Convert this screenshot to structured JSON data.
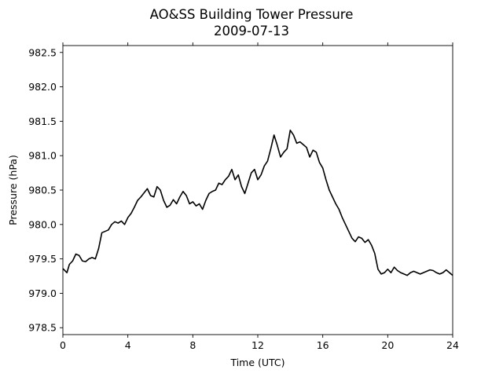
{
  "chart_data": {
    "type": "line",
    "title": "AO&SS Building Tower Pressure",
    "subtitle": "2009-07-13",
    "xlabel": "Time (UTC)",
    "ylabel": "Pressure (hPa)",
    "xlim": [
      0,
      24
    ],
    "ylim": [
      978.4,
      982.6
    ],
    "xticks": [
      0,
      4,
      8,
      12,
      16,
      20,
      24
    ],
    "yticks": [
      978.5,
      979.0,
      979.5,
      980.0,
      980.5,
      981.0,
      981.5,
      982.0,
      982.5
    ],
    "grid": false,
    "legend": "none",
    "line_color": "#000000",
    "series": [
      {
        "x": [
          0,
          0.25,
          0.4,
          0.6,
          0.8,
          1.0,
          1.2,
          1.4,
          1.6,
          1.8,
          2.0,
          2.2,
          2.4,
          2.6,
          2.8,
          3.0,
          3.2,
          3.4,
          3.6,
          3.8,
          4.0,
          4.2,
          4.4,
          4.6,
          4.8,
          5.0,
          5.2,
          5.4,
          5.6,
          5.8,
          6.0,
          6.2,
          6.4,
          6.6,
          6.8,
          7.0,
          7.2,
          7.4,
          7.6,
          7.8,
          8.0,
          8.2,
          8.4,
          8.6,
          8.8,
          9.0,
          9.2,
          9.4,
          9.6,
          9.8,
          10.0,
          10.2,
          10.4,
          10.6,
          10.8,
          11.0,
          11.2,
          11.4,
          11.6,
          11.8,
          12.0,
          12.2,
          12.4,
          12.6,
          12.8,
          13.0,
          13.2,
          13.4,
          13.6,
          13.8,
          14.0,
          14.2,
          14.4,
          14.6,
          14.8,
          15.0,
          15.2,
          15.4,
          15.6,
          15.8,
          16.0,
          16.2,
          16.4,
          16.6,
          16.8,
          17.0,
          17.2,
          17.4,
          17.6,
          17.8,
          18.0,
          18.2,
          18.4,
          18.6,
          18.8,
          19.0,
          19.2,
          19.4,
          19.6,
          19.8,
          20.0,
          20.2,
          20.4,
          20.6,
          20.8,
          21.0,
          21.2,
          21.4,
          21.6,
          21.8,
          22.0,
          22.2,
          22.4,
          22.6,
          22.8,
          23.0,
          23.2,
          23.4,
          23.6,
          23.8,
          24.0
        ],
        "values": [
          979.36,
          979.3,
          979.42,
          979.47,
          979.57,
          979.55,
          979.47,
          979.46,
          979.5,
          979.52,
          979.5,
          979.65,
          979.88,
          979.9,
          979.92,
          980.0,
          980.04,
          980.02,
          980.05,
          980.0,
          980.1,
          980.16,
          980.25,
          980.35,
          980.4,
          980.46,
          980.52,
          980.42,
          980.4,
          980.55,
          980.5,
          980.35,
          980.25,
          980.28,
          980.36,
          980.3,
          980.4,
          980.48,
          980.42,
          980.3,
          980.33,
          980.27,
          980.3,
          980.22,
          980.35,
          980.45,
          980.48,
          980.5,
          980.6,
          980.58,
          980.65,
          980.7,
          980.8,
          980.65,
          980.72,
          980.55,
          980.45,
          980.6,
          980.75,
          980.8,
          980.65,
          980.72,
          980.85,
          980.92,
          981.1,
          981.3,
          981.15,
          980.98,
          981.05,
          981.1,
          981.37,
          981.3,
          981.18,
          981.2,
          981.16,
          981.12,
          980.98,
          981.08,
          981.05,
          980.9,
          980.82,
          980.65,
          980.5,
          980.4,
          980.3,
          980.22,
          980.1,
          980.0,
          979.9,
          979.8,
          979.75,
          979.82,
          979.8,
          979.74,
          979.78,
          979.7,
          979.58,
          979.35,
          979.28,
          979.3,
          979.35,
          979.3,
          979.38,
          979.33,
          979.3,
          979.28,
          979.26,
          979.3,
          979.32,
          979.3,
          979.28,
          979.3,
          979.32,
          979.34,
          979.33,
          979.3,
          979.28,
          979.3,
          979.34,
          979.3,
          979.26
        ]
      }
    ]
  }
}
